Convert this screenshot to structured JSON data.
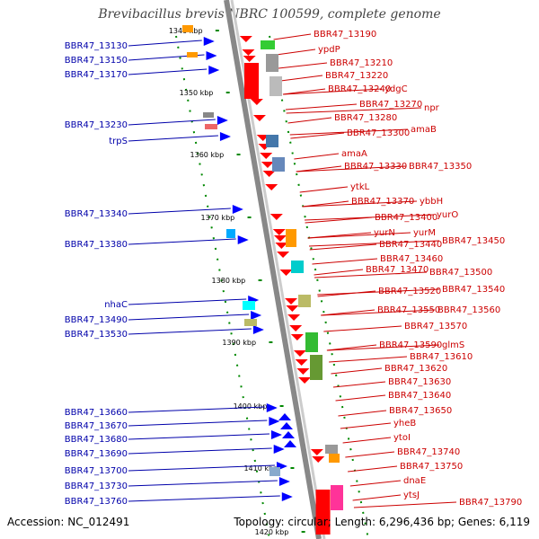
{
  "title": "Brevibacillus brevis NBRC 100599, complete genome",
  "footer": {
    "accession": "Accession: NC_012491",
    "topology": "Topology: circular; Length: 6,296,436 bp; Genes: 6,119"
  },
  "colors": {
    "left_label": "#0000aa",
    "right_label": "#cc0000",
    "minus_strand_arrow": "#0000ff",
    "plus_strand_arrow": "#ff0000",
    "axis": "#888888",
    "scale_ticks": "#008800"
  },
  "kbp_labels": [
    "1340 kbp",
    "1350 kbp",
    "1360 kbp",
    "1370 kbp",
    "1380 kbp",
    "1390 kbp",
    "1400 kbp",
    "1410 kbp",
    "1420 kbp"
  ],
  "left_genes": [
    "BBR47_13130",
    "BBR47_13150",
    "BBR47_13170",
    "BBR47_13230",
    "trpS",
    "BBR47_13340",
    "BBR47_13380",
    "nhaC",
    "BBR47_13490",
    "BBR47_13530",
    "BBR47_13660",
    "BBR47_13670",
    "BBR47_13680",
    "BBR47_13690",
    "BBR47_13700",
    "BBR47_13730",
    "BBR47_13760"
  ],
  "right_genes": [
    "BBR47_13190",
    "ypdP",
    "BBR47_13210",
    "BBR47_13220",
    "BBR47_13240",
    "ydgC",
    "BBR47_13270",
    "npr",
    "BBR47_13280",
    "BBR47_13300",
    "amaB",
    "amaA",
    "BBR47_13330",
    "BBR47_13350",
    "ytkL",
    "BBR47_13370",
    "ybbH",
    "BBR47_13400",
    "yurO",
    "yurN",
    "yurM",
    "BBR47_13440",
    "BBR47_13450",
    "BBR47_13460",
    "BBR47_13470",
    "BBR47_13500",
    "BBR47_13520",
    "BBR47_13540",
    "BBR47_13550",
    "BBR47_13560",
    "BBR47_13570",
    "BBR47_13590",
    "glmS",
    "BBR47_13610",
    "BBR47_13620",
    "BBR47_13630",
    "BBR47_13640",
    "BBR47_13650",
    "yheB",
    "ytoI",
    "BBR47_13740",
    "BBR47_13750",
    "dnaE",
    "ytsJ",
    "BBR47_13790"
  ]
}
